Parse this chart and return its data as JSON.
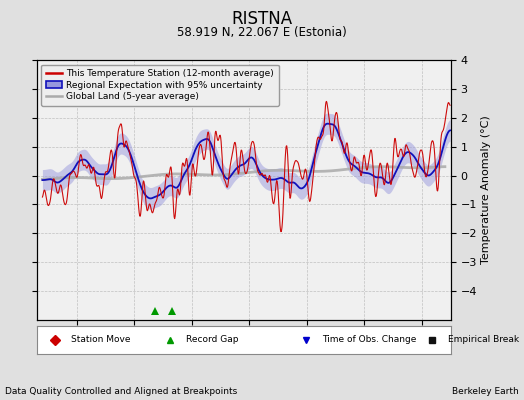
{
  "title": "RISTNA",
  "subtitle": "58.919 N, 22.067 E (Estonia)",
  "ylabel": "Temperature Anomaly (°C)",
  "footer_left": "Data Quality Controlled and Aligned at Breakpoints",
  "footer_right": "Berkeley Earth",
  "xlim": [
    1943,
    2015
  ],
  "ylim": [
    -5,
    4
  ],
  "yticks": [
    -4,
    -3,
    -2,
    -1,
    0,
    1,
    2,
    3,
    4
  ],
  "xticks": [
    1950,
    1960,
    1970,
    1980,
    1990,
    2000,
    2010
  ],
  "bg_color": "#e0e0e0",
  "plot_bg_color": "#f0f0f0",
  "red_color": "#cc0000",
  "blue_color": "#1111bb",
  "blue_fill_color": "#9999dd",
  "gray_color": "#aaaaaa",
  "legend_items": [
    "This Temperature Station (12-month average)",
    "Regional Expectation with 95% uncertainty",
    "Global Land (5-year average)"
  ],
  "marker_legend": [
    {
      "marker": "D",
      "color": "#cc0000",
      "label": "Station Move"
    },
    {
      "marker": "^",
      "color": "#009900",
      "label": "Record Gap"
    },
    {
      "marker": "v",
      "color": "#0000cc",
      "label": "Time of Obs. Change"
    },
    {
      "marker": "s",
      "color": "#111111",
      "label": "Empirical Break"
    }
  ],
  "record_gaps": [
    1963.5,
    1966.5
  ]
}
